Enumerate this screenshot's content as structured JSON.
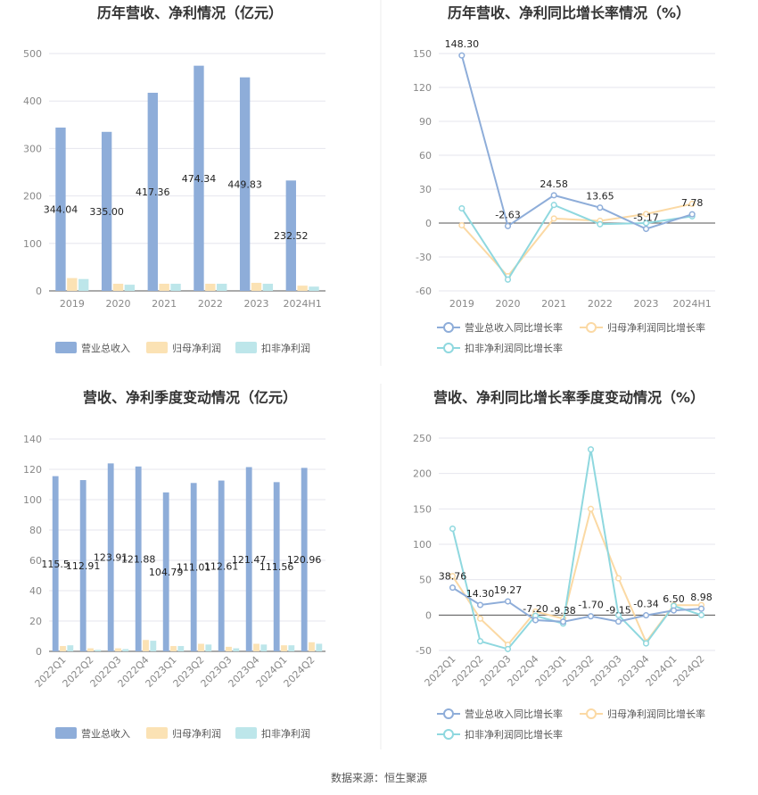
{
  "source_label": "数据来源：恒生聚源",
  "colors": {
    "revenue": "#8eadd9",
    "parent": "#fbe2b4",
    "deducted": "#bde6ea",
    "revenue_line": "#8eadd9",
    "parent_line": "#fbd9a4",
    "deducted_line": "#8fd8df",
    "grid": "#e6e6ee",
    "axis": "#555555"
  },
  "chart_data": [
    {
      "type": "bar",
      "title": "历年营收、净利情况（亿元）",
      "categories": [
        "2019",
        "2020",
        "2021",
        "2022",
        "2023",
        "2024H1"
      ],
      "ylim": [
        0,
        500
      ],
      "yticks": [
        "0",
        "100",
        "200",
        "300",
        "400",
        "500"
      ],
      "legend": "bottom",
      "series": [
        {
          "name": "营业总收入",
          "values": [
            344.04,
            335.0,
            417.36,
            474.34,
            449.83,
            232.52
          ],
          "labels": [
            "344.04",
            "335.00",
            "417.36",
            "474.34",
            "449.83",
            "232.52"
          ]
        },
        {
          "name": "归母净利润",
          "values": [
            27,
            15,
            15,
            15,
            17,
            11
          ]
        },
        {
          "name": "扣非净利润",
          "values": [
            25,
            13,
            15,
            15,
            15,
            9
          ]
        }
      ]
    },
    {
      "type": "line",
      "title": "历年营收、净利同比增长率情况（%）",
      "categories": [
        "2019",
        "2020",
        "2021",
        "2022",
        "2023",
        "2024H1"
      ],
      "ylim": [
        -60,
        150
      ],
      "yticks": [
        "-60",
        "-30",
        "0",
        "30",
        "60",
        "90",
        "120",
        "150"
      ],
      "legend": "bottom",
      "series": [
        {
          "name": "营业总收入同比增长率",
          "values": [
            148.3,
            -2.63,
            24.58,
            13.65,
            -5.17,
            7.78
          ],
          "labels": [
            "148.30",
            "-2.63",
            "24.58",
            "13.65",
            "-5.17",
            "7.78"
          ]
        },
        {
          "name": "归母净利润同比增长率",
          "values": [
            -2,
            -47,
            4,
            2,
            8,
            17
          ]
        },
        {
          "name": "扣非净利润同比增长率",
          "values": [
            13,
            -50,
            16,
            -1,
            0,
            6
          ]
        }
      ]
    },
    {
      "type": "bar",
      "title": "营收、净利季度变动情况（亿元）",
      "categories": [
        "2022Q1",
        "2022Q2",
        "2022Q3",
        "2022Q4",
        "2023Q1",
        "2023Q2",
        "2023Q3",
        "2023Q4",
        "2024Q1",
        "2024Q2"
      ],
      "ylim": [
        0,
        140
      ],
      "yticks": [
        "0",
        "20",
        "40",
        "60",
        "80",
        "100",
        "120",
        "140"
      ],
      "legend": "bottom",
      "series": [
        {
          "name": "营业总收入",
          "values": [
            115.5,
            112.91,
            123.91,
            121.88,
            104.79,
            111.01,
            112.61,
            121.47,
            111.56,
            120.96
          ],
          "labels": [
            "115.5",
            "112.91",
            "123.91",
            "121.88",
            "104.79",
            "111.01",
            "112.61",
            "121.47",
            "111.56",
            "120.96"
          ]
        },
        {
          "name": "归母净利润",
          "values": [
            3.5,
            2,
            2,
            7.5,
            3.5,
            5,
            3,
            5,
            4,
            6
          ]
        },
        {
          "name": "扣非净利润",
          "values": [
            4,
            1,
            1.5,
            7,
            3.5,
            4.5,
            2,
            4.5,
            4,
            5
          ]
        }
      ]
    },
    {
      "type": "line",
      "title": "营收、净利同比增长率季度变动情况（%）",
      "categories": [
        "2022Q1",
        "2022Q2",
        "2022Q3",
        "2022Q4",
        "2023Q1",
        "2023Q2",
        "2023Q3",
        "2023Q4",
        "2024Q1",
        "2024Q2"
      ],
      "ylim": [
        -50,
        250
      ],
      "yticks": [
        "-50",
        "0",
        "50",
        "100",
        "150",
        "200",
        "250"
      ],
      "legend": "bottom",
      "series": [
        {
          "name": "营业总收入同比增长率",
          "values": [
            38.76,
            14.3,
            19.27,
            -7.2,
            -9.38,
            -1.7,
            -9.15,
            -0.34,
            6.5,
            8.98
          ],
          "labels": [
            "38.76",
            "14.30",
            "19.27",
            "-7.20",
            "-9.38",
            "-1.70",
            "-9.15",
            "-0.34",
            "6.50",
            "8.98"
          ]
        },
        {
          "name": "归母净利润同比增长率",
          "values": [
            55,
            -5,
            -42,
            5,
            -5,
            150,
            52,
            -38,
            14,
            14
          ]
        },
        {
          "name": "扣非净利润同比增长率",
          "values": [
            122,
            -37,
            -48,
            -1,
            -12,
            234,
            0,
            -40,
            13,
            0
          ]
        }
      ]
    }
  ]
}
